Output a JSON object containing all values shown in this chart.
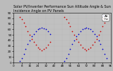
{
  "title": "Solar PV/Inverter Performance Sun Altitude Angle & Sun Incidence Angle on PV Panels",
  "background_color": "#bbbbbb",
  "plot_bg_color": "#c0c0c0",
  "grid_color": "#aaaaaa",
  "xlim": [
    0,
    96
  ],
  "ylim": [
    0,
    90
  ],
  "ytick_labels": [
    "0",
    "10",
    "20",
    "30",
    "40",
    "50",
    "60",
    "70",
    "80",
    "90"
  ],
  "ytick_values": [
    0,
    10,
    20,
    30,
    40,
    50,
    60,
    70,
    80,
    90
  ],
  "legend_labels": [
    "Alt",
    "Inc"
  ],
  "legend_colors": [
    "#0000cc",
    "#cc0000"
  ],
  "sun_altitude_x": [
    6,
    8,
    10,
    12,
    14,
    16,
    18,
    20,
    22,
    24,
    26,
    28,
    30,
    32,
    34,
    36,
    50,
    52,
    54,
    56,
    58,
    60,
    62,
    64,
    66,
    68,
    70,
    72,
    74,
    76,
    78,
    80,
    82,
    84,
    86,
    88,
    90,
    92
  ],
  "sun_altitude_y": [
    3,
    8,
    15,
    24,
    33,
    40,
    47,
    52,
    57,
    60,
    62,
    63,
    62,
    60,
    57,
    52,
    3,
    8,
    15,
    24,
    33,
    40,
    47,
    52,
    57,
    60,
    62,
    63,
    62,
    60,
    57,
    52,
    47,
    40,
    33,
    24,
    15,
    8
  ],
  "sun_incidence_x": [
    6,
    8,
    10,
    12,
    14,
    16,
    18,
    20,
    22,
    24,
    26,
    28,
    30,
    32,
    34,
    36,
    50,
    52,
    54,
    56,
    58,
    60,
    62,
    64,
    66,
    68,
    70,
    72,
    74,
    76,
    78,
    80,
    82,
    84,
    86,
    88,
    90,
    92
  ],
  "sun_incidence_y": [
    82,
    78,
    72,
    65,
    57,
    50,
    43,
    37,
    32,
    27,
    24,
    22,
    24,
    27,
    32,
    37,
    82,
    78,
    72,
    65,
    57,
    50,
    43,
    37,
    32,
    27,
    24,
    22,
    24,
    27,
    32,
    37,
    43,
    50,
    57,
    65,
    72,
    78
  ],
  "marker_size": 1.5,
  "figsize": [
    1.6,
    1.0
  ],
  "dpi": 100,
  "title_fontsize": 3.5,
  "tick_fontsize": 3,
  "legend_fontsize": 3
}
